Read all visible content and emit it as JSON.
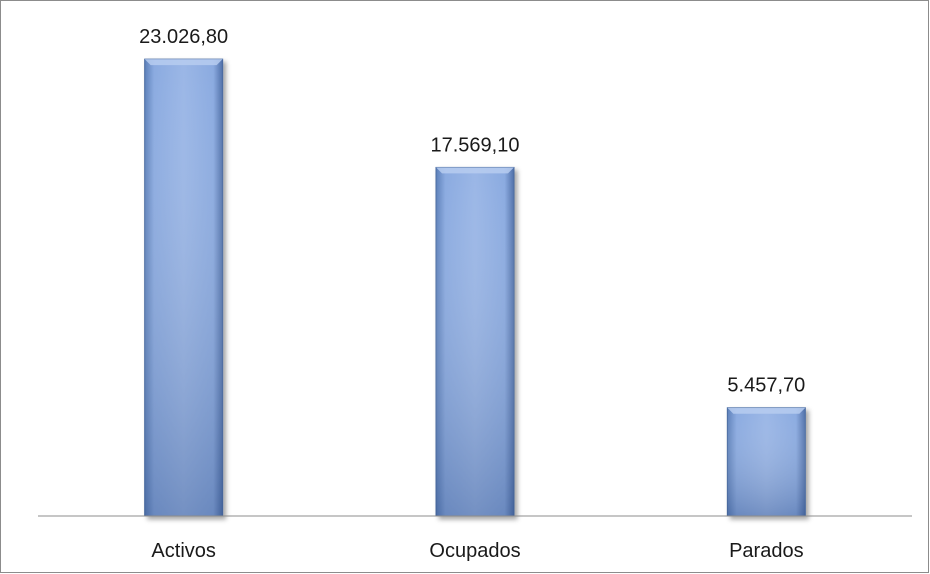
{
  "chart_data": {
    "type": "bar",
    "categories": [
      "Activos",
      "Ocupados",
      "Parados"
    ],
    "values": [
      23026.8,
      17569.1,
      5457.7
    ],
    "data_labels": [
      "23.026,80",
      "17.569,10",
      "5.457,70"
    ],
    "ylim": [
      0,
      25000
    ],
    "grid": false,
    "legend": "none",
    "bar_color": "#7f9fd3"
  }
}
